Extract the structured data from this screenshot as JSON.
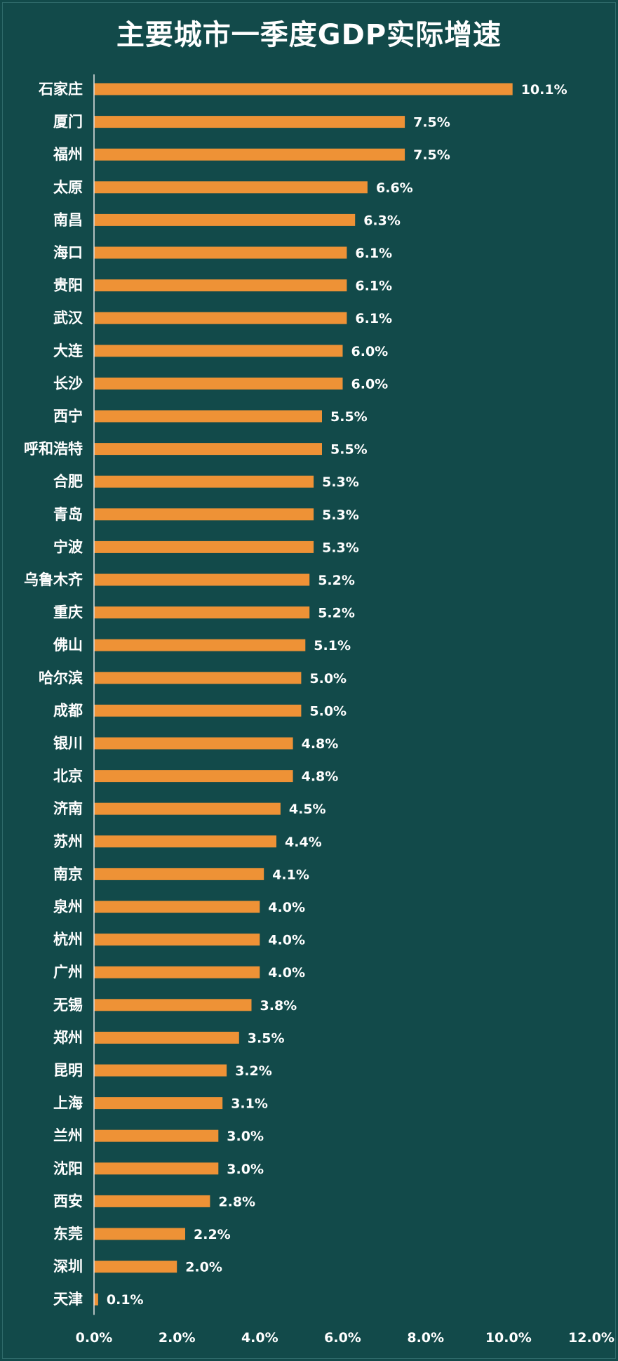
{
  "chart_data": {
    "type": "bar",
    "orientation": "horizontal",
    "title": "主要城市一季度GDP实际增速",
    "categories": [
      "石家庄",
      "厦门",
      "福州",
      "太原",
      "南昌",
      "海口",
      "贵阳",
      "武汉",
      "大连",
      "长沙",
      "西宁",
      "呼和浩特",
      "合肥",
      "青岛",
      "宁波",
      "乌鲁木齐",
      "重庆",
      "佛山",
      "哈尔滨",
      "成都",
      "银川",
      "北京",
      "济南",
      "苏州",
      "南京",
      "泉州",
      "杭州",
      "广州",
      "无锡",
      "郑州",
      "昆明",
      "上海",
      "兰州",
      "沈阳",
      "西安",
      "东莞",
      "深圳",
      "天津"
    ],
    "values": [
      10.1,
      7.5,
      7.5,
      6.6,
      6.3,
      6.1,
      6.1,
      6.1,
      6.0,
      6.0,
      5.5,
      5.5,
      5.3,
      5.3,
      5.3,
      5.2,
      5.2,
      5.1,
      5.0,
      5.0,
      4.8,
      4.8,
      4.5,
      4.4,
      4.1,
      4.0,
      4.0,
      4.0,
      3.8,
      3.5,
      3.2,
      3.1,
      3.0,
      3.0,
      2.8,
      2.2,
      2.0,
      0.1
    ],
    "value_labels": [
      "10.1%",
      "7.5%",
      "7.5%",
      "6.6%",
      "6.3%",
      "6.1%",
      "6.1%",
      "6.1%",
      "6.0%",
      "6.0%",
      "5.5%",
      "5.5%",
      "5.3%",
      "5.3%",
      "5.3%",
      "5.2%",
      "5.2%",
      "5.1%",
      "5.0%",
      "5.0%",
      "4.8%",
      "4.8%",
      "4.5%",
      "4.4%",
      "4.1%",
      "4.0%",
      "4.0%",
      "4.0%",
      "3.8%",
      "3.5%",
      "3.2%",
      "3.1%",
      "3.0%",
      "3.0%",
      "2.8%",
      "2.2%",
      "2.0%",
      "0.1%"
    ],
    "xlim": [
      0,
      12
    ],
    "xticks": [
      "0.0%",
      "2.0%",
      "4.0%",
      "6.0%",
      "8.0%",
      "10.0%",
      "12.0%"
    ],
    "xlabel": "",
    "ylabel": "",
    "grid": false,
    "legend": "none",
    "bar_color": "#ee9236",
    "background_color": "#124a4a"
  }
}
